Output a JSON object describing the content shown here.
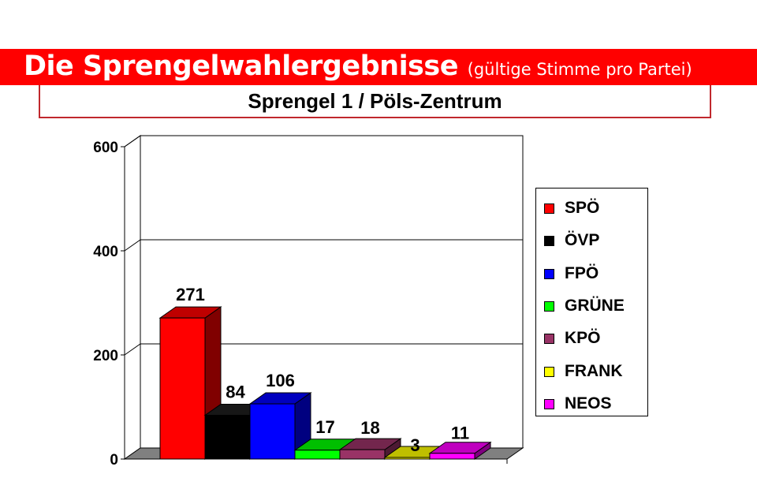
{
  "header": {
    "title": "Die Sprengelwahlergebnisse",
    "title_note": "(gültige Stimme pro Partei)"
  },
  "chart_data": {
    "type": "bar",
    "title": "Sprengel 1 / Pöls-Zentrum",
    "xlabel": "",
    "ylabel": "",
    "ylim": [
      0,
      600
    ],
    "y_ticks": [
      "0",
      "200",
      "400",
      "600"
    ],
    "grid": true,
    "legend_position": "right",
    "three_d": true,
    "series": [
      {
        "name": "SPÖ",
        "value": 271,
        "color": "#ff0000"
      },
      {
        "name": "ÖVP",
        "value": 84,
        "color": "#000000"
      },
      {
        "name": "FPÖ",
        "value": 106,
        "color": "#0000ff"
      },
      {
        "name": "GRÜNE",
        "value": 17,
        "color": "#00ff00"
      },
      {
        "name": "KPÖ",
        "value": 18,
        "color": "#993366"
      },
      {
        "name": "FRANK",
        "value": 3,
        "color": "#ffff00"
      },
      {
        "name": "NEOS",
        "value": 11,
        "color": "#ff00ff"
      }
    ]
  }
}
